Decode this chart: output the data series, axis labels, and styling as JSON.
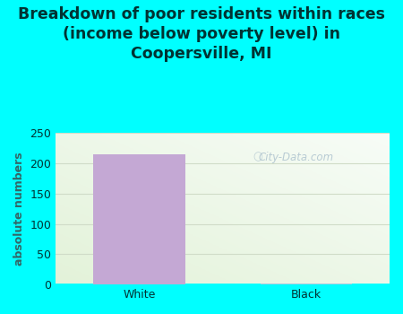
{
  "categories": [
    "White",
    "Black"
  ],
  "values": [
    215,
    2
  ],
  "bar_colors": [
    "#c4a8d4",
    "#a8cce0"
  ],
  "title": "Breakdown of poor residents within races\n(income below poverty level) in\nCoopersville, MI",
  "ylabel": "absolute numbers",
  "ylim": [
    0,
    250
  ],
  "yticks": [
    0,
    50,
    100,
    150,
    200,
    250
  ],
  "bg_color": "#00ffff",
  "plot_bg_color_tl": "#e8f2e0",
  "plot_bg_color_br": "#f8fcf4",
  "grid_color": "#d0dcc8",
  "title_fontsize": 12.5,
  "axis_fontsize": 9,
  "tick_fontsize": 9,
  "watermark": "City-Data.com",
  "title_color": "#003333",
  "ylabel_color": "#336666"
}
